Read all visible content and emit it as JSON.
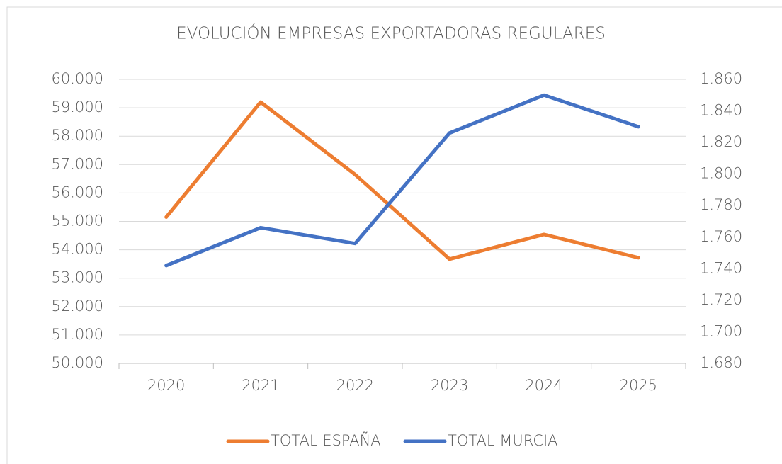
{
  "chart_data": {
    "type": "line",
    "title": "EVOLUCIÓN EMPRESAS EXPORTADORAS REGULARES",
    "categories": [
      "2020",
      "2021",
      "2022",
      "2023",
      "2024",
      "2025"
    ],
    "series": [
      {
        "name": "TOTAL ESPAÑA",
        "color": "#ED7D31",
        "values": [
          55150,
          59200,
          56650,
          53670,
          54540,
          53720
        ]
      },
      {
        "name": "TOTAL MURCIA",
        "color": "#4472C4",
        "axis": "y2",
        "values": [
          1742,
          1766,
          1756,
          1826,
          1850,
          1830
        ]
      }
    ],
    "ylim": [
      50000,
      60000
    ],
    "yticks": [
      {
        "value": 50000,
        "label": "50.000"
      },
      {
        "value": 51000,
        "label": "51.000"
      },
      {
        "value": 52000,
        "label": "52.000"
      },
      {
        "value": 53000,
        "label": "53.000"
      },
      {
        "value": 54000,
        "label": "54.000"
      },
      {
        "value": 55000,
        "label": "55.000"
      },
      {
        "value": 56000,
        "label": "56.000"
      },
      {
        "value": 57000,
        "label": "57.000"
      },
      {
        "value": 58000,
        "label": "58.000"
      },
      {
        "value": 59000,
        "label": "59.000"
      },
      {
        "value": 60000,
        "label": "60.000"
      }
    ],
    "y2lim": [
      1680,
      1860
    ],
    "y2ticks": [
      {
        "value": 1680,
        "label": "1.680"
      },
      {
        "value": 1700,
        "label": "1.700"
      },
      {
        "value": 1720,
        "label": "1.720"
      },
      {
        "value": 1740,
        "label": "1.740"
      },
      {
        "value": 1760,
        "label": "1.760"
      },
      {
        "value": 1780,
        "label": "1.780"
      },
      {
        "value": 1800,
        "label": "1.800"
      },
      {
        "value": 1820,
        "label": "1.820"
      },
      {
        "value": 1840,
        "label": "1.840"
      },
      {
        "value": 1860,
        "label": "1.860"
      }
    ],
    "grid": true,
    "legend": "bottom"
  }
}
